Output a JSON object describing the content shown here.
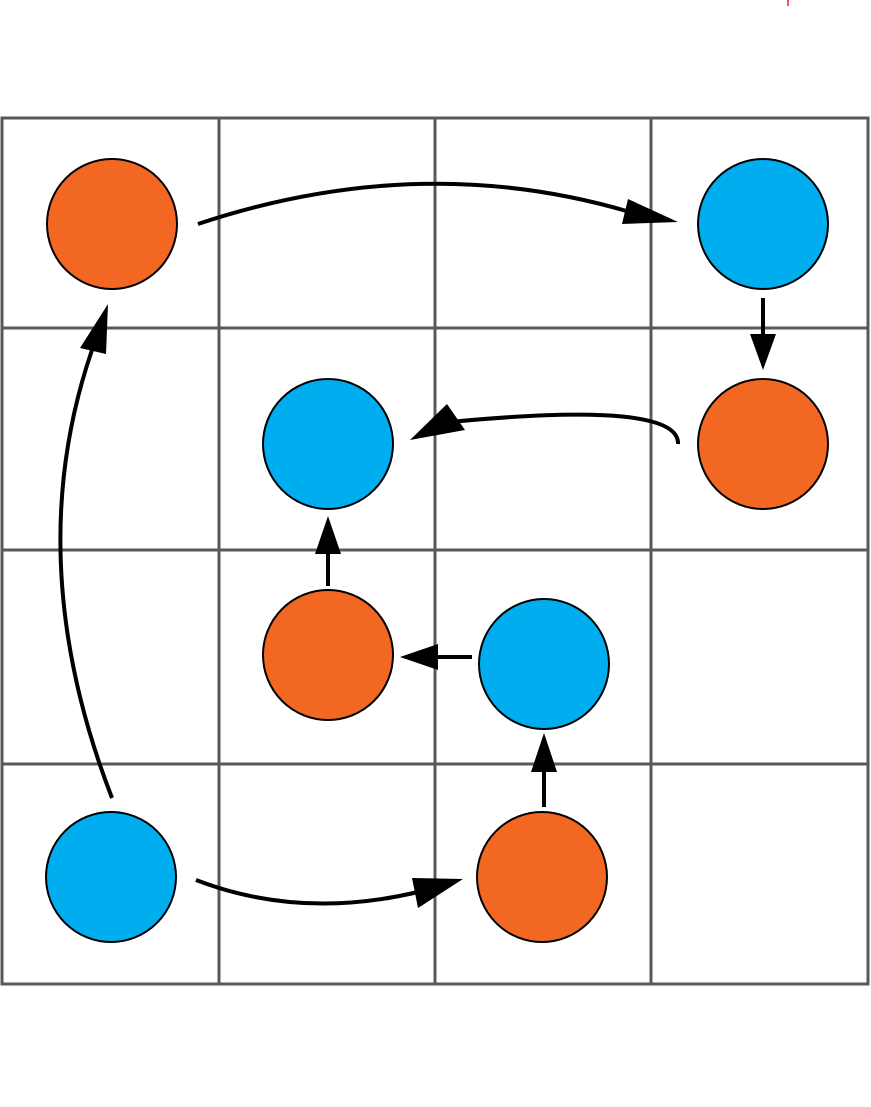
{
  "colors": {
    "orange": "#f26722",
    "blue": "#00aeef",
    "grid": "#58595b",
    "arrow": "#000000",
    "marker": "#ed1c24"
  },
  "grid": {
    "rows": 4,
    "cols": 4
  },
  "nodes": [
    {
      "id": "n1",
      "row": 0,
      "col": 0,
      "color": "orange"
    },
    {
      "id": "n2",
      "row": 0,
      "col": 3,
      "color": "blue"
    },
    {
      "id": "n3",
      "row": 1,
      "col": 3,
      "color": "orange"
    },
    {
      "id": "n4",
      "row": 1,
      "col": 1,
      "color": "blue"
    },
    {
      "id": "n5",
      "row": 2,
      "col": 1,
      "color": "orange"
    },
    {
      "id": "n6",
      "row": 2,
      "col": 2,
      "color": "blue"
    },
    {
      "id": "n7",
      "row": 3,
      "col": 2,
      "color": "orange"
    },
    {
      "id": "n8",
      "row": 3,
      "col": 0,
      "color": "blue"
    }
  ],
  "edges": [
    {
      "from": "n1",
      "to": "n2"
    },
    {
      "from": "n2",
      "to": "n3"
    },
    {
      "from": "n3",
      "to": "n4"
    },
    {
      "from": "n5",
      "to": "n4"
    },
    {
      "from": "n6",
      "to": "n5"
    },
    {
      "from": "n7",
      "to": "n6"
    },
    {
      "from": "n8",
      "to": "n7"
    },
    {
      "from": "n8",
      "to": "n1"
    }
  ]
}
